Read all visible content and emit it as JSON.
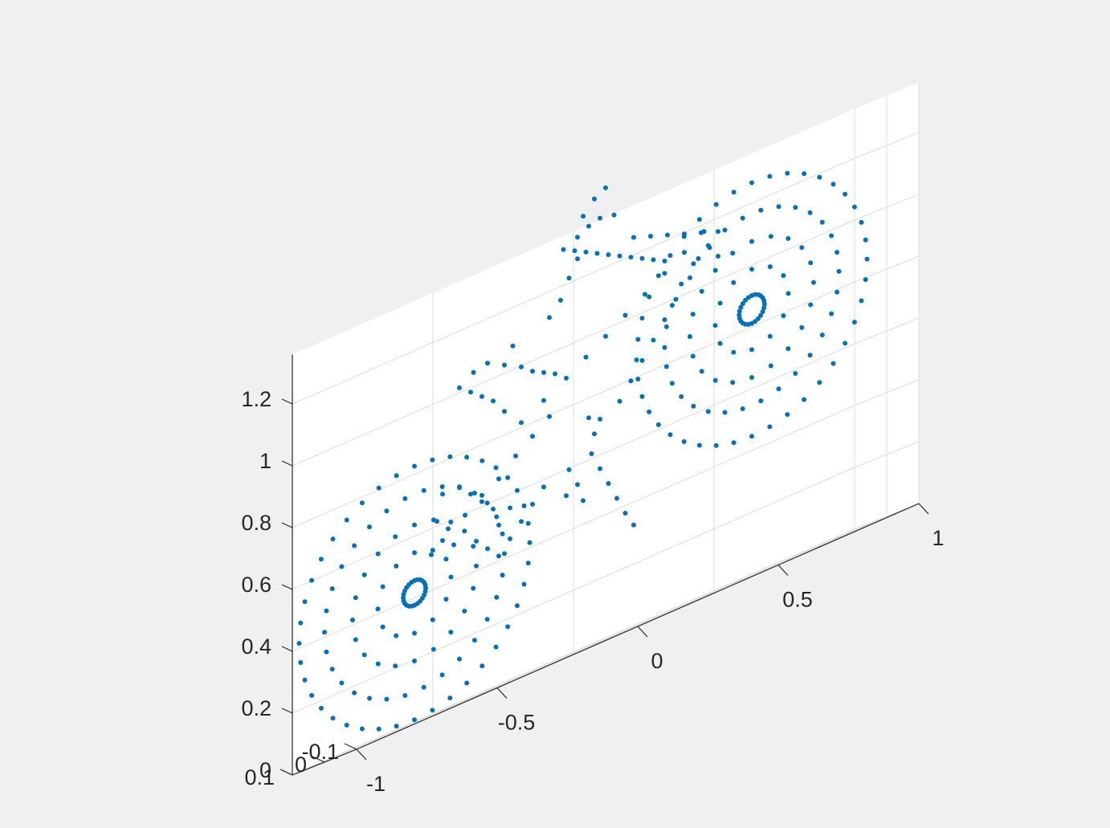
{
  "chart_data": {
    "type": "scatter",
    "title": "",
    "xlabel": "",
    "ylabel": "",
    "zlabel": "",
    "xlim": [
      -1,
      1
    ],
    "ylim": [
      -0.1,
      0.1
    ],
    "zlim": [
      0,
      1.36
    ],
    "grid": true,
    "marker_color": "#0072bd",
    "x_ticks": [
      -1,
      -0.5,
      0,
      0.5,
      1
    ],
    "x_tick_labels": [
      "-1",
      "-0.5",
      "0",
      "0.5",
      "1"
    ],
    "y_ticks": [
      -0.1,
      0,
      0.1
    ],
    "y_tick_labels": [
      "-0.1",
      "0",
      "0.1"
    ],
    "z_ticks": [
      0,
      0.2,
      0.4,
      0.6,
      0.8,
      1,
      1.2
    ],
    "z_tick_labels": [
      "0",
      "0.2",
      "0.4",
      "0.6",
      "0.8",
      "1",
      "1.2"
    ],
    "series": [
      {
        "part": "rear-wheel",
        "center": [
          -0.68,
          0,
          0.42
        ],
        "rings": [
          {
            "r": 0.04,
            "n": 24
          },
          {
            "r": 0.13,
            "n": 12
          },
          {
            "r": 0.22,
            "n": 20
          },
          {
            "r": 0.32,
            "n": 30
          },
          {
            "r": 0.41,
            "n": 40
          }
        ]
      },
      {
        "part": "front-wheel",
        "center": [
          0.52,
          0,
          0.86
        ],
        "rings": [
          {
            "r": 0.045,
            "n": 24
          },
          {
            "r": 0.13,
            "n": 12
          },
          {
            "r": 0.22,
            "n": 20
          },
          {
            "r": 0.31,
            "n": 30
          },
          {
            "r": 0.41,
            "n": 40
          }
        ]
      },
      {
        "part": "frame-points",
        "points": [
          [
            -0.62,
            0,
            0.52
          ],
          [
            -0.58,
            0,
            0.55
          ],
          [
            -0.5,
            0,
            0.6
          ],
          [
            -0.44,
            0,
            0.64
          ],
          [
            -0.38,
            0,
            0.67
          ],
          [
            -0.32,
            0,
            0.72
          ],
          [
            -0.26,
            0,
            0.76
          ],
          [
            -0.2,
            0,
            0.8
          ],
          [
            -0.3,
            0,
            0.82
          ],
          [
            -0.22,
            0,
            0.86
          ],
          [
            -0.14,
            0,
            0.9
          ],
          [
            -0.07,
            0,
            0.94
          ],
          [
            0.0,
            0,
            0.98
          ],
          [
            0.07,
            0,
            1.02
          ],
          [
            0.14,
            0,
            1.06
          ],
          [
            0.21,
            0,
            1.1
          ],
          [
            0.28,
            0,
            1.14
          ],
          [
            0.35,
            0,
            1.18
          ],
          [
            -0.36,
            0,
            0.88
          ],
          [
            -0.4,
            0,
            0.93
          ],
          [
            -0.44,
            0,
            0.96
          ],
          [
            -0.48,
            0,
            0.99
          ],
          [
            -0.52,
            0,
            1.02
          ],
          [
            -0.47,
            0,
            1.05
          ],
          [
            -0.42,
            0,
            1.06
          ],
          [
            -0.36,
            0,
            1.03
          ],
          [
            -0.3,
            0,
            1.0
          ],
          [
            -0.26,
            0,
            0.97
          ],
          [
            -0.22,
            0,
            0.95
          ],
          [
            -0.18,
            0,
            0.93
          ],
          [
            -0.33,
            0,
            1.08
          ],
          [
            -0.2,
            0,
            1.12
          ],
          [
            -0.16,
            0,
            1.16
          ],
          [
            -0.13,
            0,
            1.22
          ],
          [
            -0.1,
            0,
            1.27
          ],
          [
            -0.15,
            0,
            1.32
          ],
          [
            -0.1,
            0,
            1.34
          ],
          [
            -0.06,
            0,
            1.36
          ],
          [
            -0.02,
            0,
            1.37
          ],
          [
            0.03,
            0,
            1.36
          ],
          [
            -0.08,
            0,
            1.4
          ],
          [
            -0.04,
            0,
            1.44
          ],
          [
            0.0,
            0,
            1.46
          ],
          [
            -0.11,
            0,
            1.3
          ],
          [
            -0.07,
            0,
            1.28
          ],
          [
            -0.03,
            0,
            1.26
          ],
          [
            0.01,
            0,
            1.24
          ],
          [
            0.05,
            0,
            1.22
          ],
          [
            0.09,
            0,
            1.2
          ],
          [
            0.13,
            0,
            1.18
          ],
          [
            0.17,
            0,
            1.16
          ],
          [
            0.21,
            0,
            1.14
          ],
          [
            0.1,
            0,
            1.26
          ],
          [
            0.16,
            0,
            1.24
          ],
          [
            0.22,
            0,
            1.22
          ],
          [
            0.28,
            0,
            1.2
          ],
          [
            0.34,
            0,
            1.18
          ],
          [
            0.4,
            0,
            1.16
          ],
          [
            0.33,
            0,
            1.1
          ],
          [
            0.37,
            0,
            1.12
          ],
          [
            0.4,
            0,
            1.08
          ],
          [
            0.3,
            0,
            1.05
          ],
          [
            0.25,
            0,
            1.0
          ],
          [
            0.21,
            0,
            0.95
          ],
          [
            0.17,
            0,
            0.9
          ],
          [
            0.13,
            0,
            0.85
          ],
          [
            0.09,
            0,
            0.8
          ],
          [
            0.05,
            0,
            0.75
          ],
          [
            -0.05,
            0,
            0.62
          ],
          [
            -0.02,
            0,
            0.56
          ],
          [
            0.01,
            0,
            0.5
          ],
          [
            0.04,
            0,
            0.44
          ],
          [
            0.07,
            0,
            0.38
          ],
          [
            0.1,
            0,
            0.33
          ],
          [
            -0.06,
            0,
            0.74
          ],
          [
            -0.04,
            0,
            0.68
          ],
          [
            -0.02,
            0,
            0.72
          ],
          [
            -0.13,
            0,
            0.6
          ],
          [
            -0.1,
            0,
            0.54
          ],
          [
            -0.08,
            0,
            0.48
          ],
          [
            -0.14,
            0,
            0.52
          ],
          [
            -0.22,
            0,
            0.58
          ],
          [
            -0.26,
            0,
            0.54
          ],
          [
            -0.3,
            0,
            0.5
          ],
          [
            -0.34,
            0,
            0.46
          ],
          [
            -0.38,
            0,
            0.42
          ],
          [
            -0.48,
            0,
            0.66
          ],
          [
            -0.44,
            0,
            0.62
          ],
          [
            -0.4,
            0,
            0.58
          ],
          [
            -0.52,
            0,
            0.7
          ],
          [
            -0.56,
            0,
            0.58
          ],
          [
            -0.6,
            0,
            0.62
          ],
          [
            -0.54,
            0,
            0.52
          ],
          [
            -0.46,
            0,
            0.5
          ],
          [
            -0.42,
            0,
            0.46
          ],
          [
            -0.38,
            0,
            0.52
          ],
          [
            -0.34,
            0,
            0.56
          ],
          [
            -0.58,
            0,
            0.7
          ]
        ]
      }
    ]
  }
}
